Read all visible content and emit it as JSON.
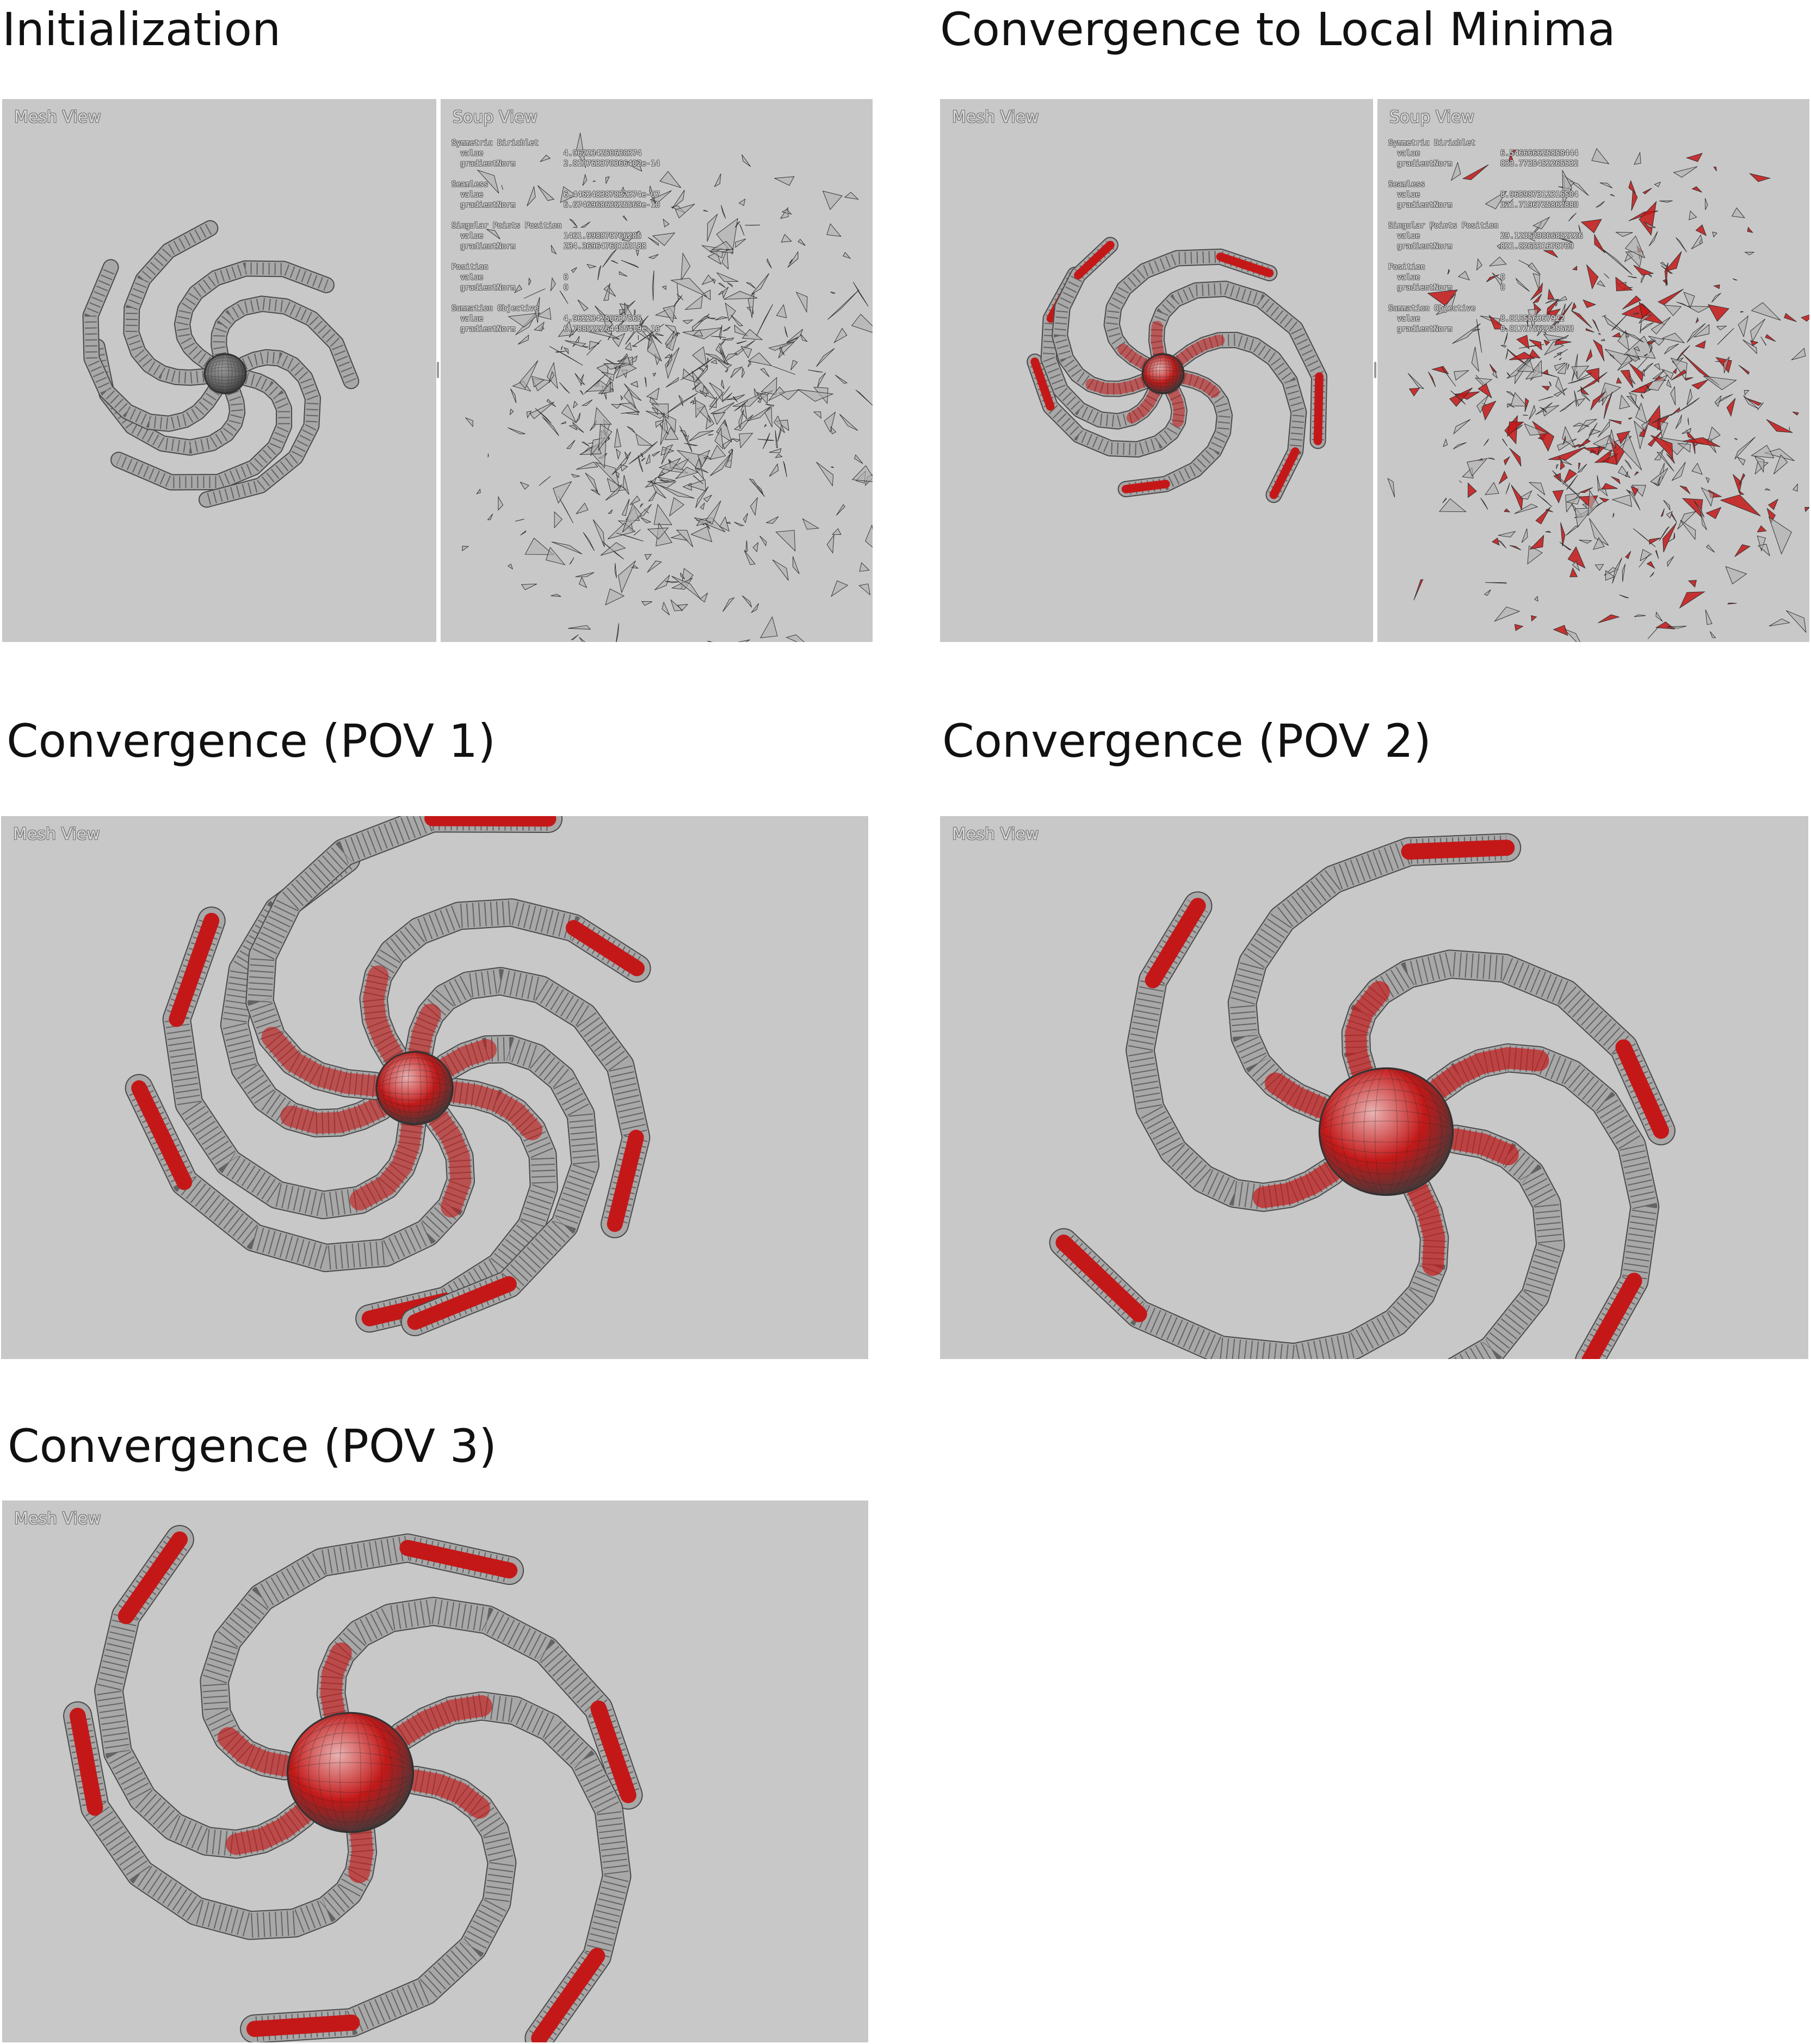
{
  "panels": {
    "init": {
      "title": "Initialization"
    },
    "local": {
      "title": "Convergence to Local Minima"
    },
    "pov1": {
      "title": "Convergence (POV 1)"
    },
    "pov2": {
      "title": "Convergence (POV 2)"
    },
    "pov3": {
      "title": "Convergence (POV 3)"
    }
  },
  "views": {
    "mesh_label": "Mesh View",
    "soup_label": "Soup View"
  },
  "stats": {
    "init": [
      {
        "name": "Symmetric Dirichlet",
        "rows": [
          {
            "key": "value",
            "val": "4.962234250630374"
          },
          {
            "key": "gradientNorm",
            "val": "2.810763370366402e-14"
          }
        ]
      },
      {
        "name": "Seamless",
        "rows": [
          {
            "key": "value",
            "val": "6.446248387832374e-07"
          },
          {
            "key": "gradientNorm",
            "val": "6.674696863625569e-10"
          }
        ]
      },
      {
        "name": "Singular Points Position",
        "rows": [
          {
            "key": "value",
            "val": "1461.998870766285"
          },
          {
            "key": "gradientNorm",
            "val": "234.36964760153188"
          }
        ]
      },
      {
        "name": "Position",
        "rows": [
          {
            "key": "value",
            "val": "0"
          },
          {
            "key": "gradientNorm",
            "val": "0"
          }
        ]
      },
      {
        "name": "Summation Objective",
        "rows": [
          {
            "key": "value",
            "val": "4.962234250637565"
          },
          {
            "key": "gradientNorm",
            "val": "6.788522264455419e-10"
          }
        ]
      }
    ],
    "local": [
      {
        "name": "Symmetric Dirichlet",
        "rows": [
          {
            "key": "value",
            "val": "6.546666625858444"
          },
          {
            "key": "gradientNorm",
            "val": "833.7735452265532"
          }
        ]
      },
      {
        "name": "Seamless",
        "rows": [
          {
            "key": "value",
            "val": "8.965987312316504"
          },
          {
            "key": "gradientNorm",
            "val": "321.7196725862880"
          }
        ]
      },
      {
        "name": "Singular Points Position",
        "rows": [
          {
            "key": "value",
            "val": "29.123529866852226"
          },
          {
            "key": "gradientNorm",
            "val": "821.826531678709"
          }
        ]
      },
      {
        "name": "Position",
        "rows": [
          {
            "key": "value",
            "val": "0"
          },
          {
            "key": "gradientNorm",
            "val": "0"
          }
        ]
      },
      {
        "name": "Summation Objective",
        "rows": [
          {
            "key": "value",
            "val": "8.815556367922"
          },
          {
            "key": "gradientNorm",
            "val": "0.81727562235563"
          }
        ]
      }
    ]
  },
  "colors": {
    "viewport_bg": "#c8c8c8",
    "mesh_gray": "#a8a8a8",
    "distortion_red": "#c41818",
    "wire": "#2a2a2a"
  }
}
